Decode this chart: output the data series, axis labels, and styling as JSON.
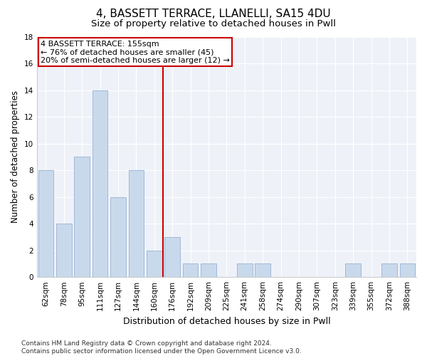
{
  "title": "4, BASSETT TERRACE, LLANELLI, SA15 4DU",
  "subtitle": "Size of property relative to detached houses in Pwll",
  "xlabel": "Distribution of detached houses by size in Pwll",
  "ylabel": "Number of detached properties",
  "categories": [
    "62sqm",
    "78sqm",
    "95sqm",
    "111sqm",
    "127sqm",
    "144sqm",
    "160sqm",
    "176sqm",
    "192sqm",
    "209sqm",
    "225sqm",
    "241sqm",
    "258sqm",
    "274sqm",
    "290sqm",
    "307sqm",
    "323sqm",
    "339sqm",
    "355sqm",
    "372sqm",
    "388sqm"
  ],
  "values": [
    8,
    4,
    9,
    14,
    6,
    8,
    2,
    3,
    1,
    1,
    0,
    1,
    1,
    0,
    0,
    0,
    0,
    1,
    0,
    1,
    1
  ],
  "bar_color": "#c9d9ec",
  "bar_edge_color": "#a0b8d8",
  "vline_x": 6.5,
  "vline_color": "#cc0000",
  "annotation_line1": "4 BASSETT TERRACE: 155sqm",
  "annotation_line2": "← 76% of detached houses are smaller (45)",
  "annotation_line3": "20% of semi-detached houses are larger (12) →",
  "annotation_box_color": "#cc0000",
  "ylim": [
    0,
    18
  ],
  "yticks": [
    0,
    2,
    4,
    6,
    8,
    10,
    12,
    14,
    16,
    18
  ],
  "bg_color": "#eef2f8",
  "footer_text": "Contains HM Land Registry data © Crown copyright and database right 2024.\nContains public sector information licensed under the Open Government Licence v3.0.",
  "title_fontsize": 11,
  "subtitle_fontsize": 9.5,
  "xlabel_fontsize": 9,
  "ylabel_fontsize": 8.5,
  "tick_fontsize": 7.5,
  "footer_fontsize": 6.5,
  "annot_fontsize": 8
}
